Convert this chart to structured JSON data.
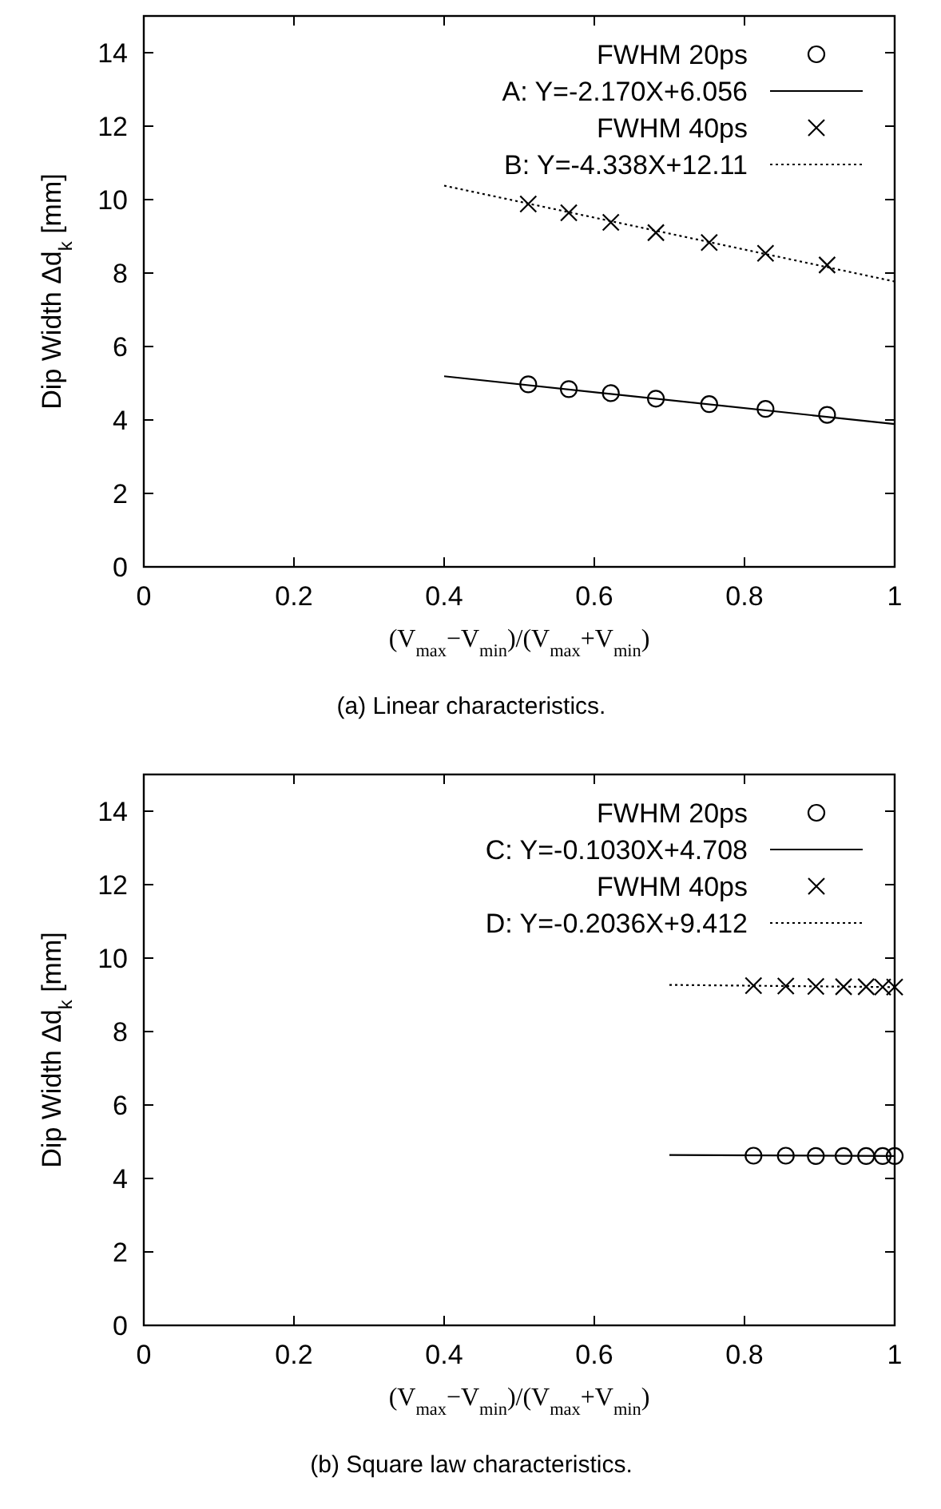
{
  "chart_data": [
    {
      "type": "scatter",
      "xlabel": "(V$_{max}$−V$_{min}$)/(V$_{max}$+V$_{min}$)",
      "ylabel": "Dip Width Δd$_{k}$ [mm]",
      "annotations": [
        "(a) Linear characteristics."
      ],
      "xlim": [
        0,
        1
      ],
      "ylim": [
        0,
        15
      ],
      "xticks": [
        0,
        0.2,
        0.4,
        0.6,
        0.8,
        1
      ],
      "yticks": [
        0,
        2,
        4,
        6,
        8,
        10,
        12,
        14
      ],
      "grid": false,
      "legend": "top right",
      "series": [
        {
          "name": "FWHM 20ps",
          "marker": "circle",
          "color": "#000000",
          "x": [
            0.512,
            0.566,
            0.622,
            0.682,
            0.753,
            0.828,
            0.91
          ],
          "values": [
            4.97,
            4.84,
            4.73,
            4.58,
            4.43,
            4.3,
            4.14
          ]
        },
        {
          "name": "A: Y=-2.170X+6.056",
          "type": "line",
          "marker": "none",
          "line_style": "solid",
          "color": "#000000",
          "x": [
            0.4,
            1
          ],
          "values": [
            5.19,
            3.89
          ]
        },
        {
          "name": "FWHM 40ps",
          "marker": "cross",
          "color": "#000000",
          "x": [
            0.512,
            0.566,
            0.622,
            0.682,
            0.753,
            0.828,
            0.91
          ],
          "values": [
            9.88,
            9.64,
            9.38,
            9.1,
            8.83,
            8.54,
            8.22
          ]
        },
        {
          "name": "B: Y=-4.338X+12.11",
          "type": "line",
          "marker": "none",
          "line_style": "dotted",
          "color": "#000000",
          "x": [
            0.4,
            1
          ],
          "values": [
            10.38,
            7.77
          ]
        }
      ]
    },
    {
      "type": "scatter",
      "xlabel": "(V$_{max}$−V$_{min}$)/(V$_{max}$+V$_{min}$)",
      "ylabel": "Dip Width Δd$_{k}$ [mm]",
      "annotations": [
        "(b) Square law characteristics."
      ],
      "xlim": [
        0,
        1
      ],
      "ylim": [
        0,
        15
      ],
      "xticks": [
        0,
        0.2,
        0.4,
        0.6,
        0.8,
        1
      ],
      "yticks": [
        0,
        2,
        4,
        6,
        8,
        10,
        12,
        14
      ],
      "grid": false,
      "legend": "top right",
      "series": [
        {
          "name": "FWHM 20ps",
          "marker": "circle",
          "color": "#000000",
          "x": [
            0.812,
            0.855,
            0.895,
            0.932,
            0.962,
            0.984,
            1.0
          ],
          "values": [
            4.62,
            4.62,
            4.61,
            4.61,
            4.61,
            4.61,
            4.61
          ]
        },
        {
          "name": "C: Y=-0.1030X+4.708",
          "type": "line",
          "marker": "none",
          "line_style": "solid",
          "color": "#000000",
          "x": [
            0.7,
            1
          ],
          "values": [
            4.64,
            4.61
          ]
        },
        {
          "name": "FWHM 40ps",
          "marker": "cross",
          "color": "#000000",
          "x": [
            0.812,
            0.855,
            0.895,
            0.932,
            0.962,
            0.984,
            1.0
          ],
          "values": [
            9.25,
            9.24,
            9.23,
            9.22,
            9.22,
            9.21,
            9.21
          ]
        },
        {
          "name": "D: Y=-0.2036X+9.412",
          "type": "line",
          "marker": "none",
          "line_style": "dotted",
          "color": "#000000",
          "x": [
            0.7,
            1
          ],
          "values": [
            9.27,
            9.21
          ]
        }
      ]
    }
  ]
}
